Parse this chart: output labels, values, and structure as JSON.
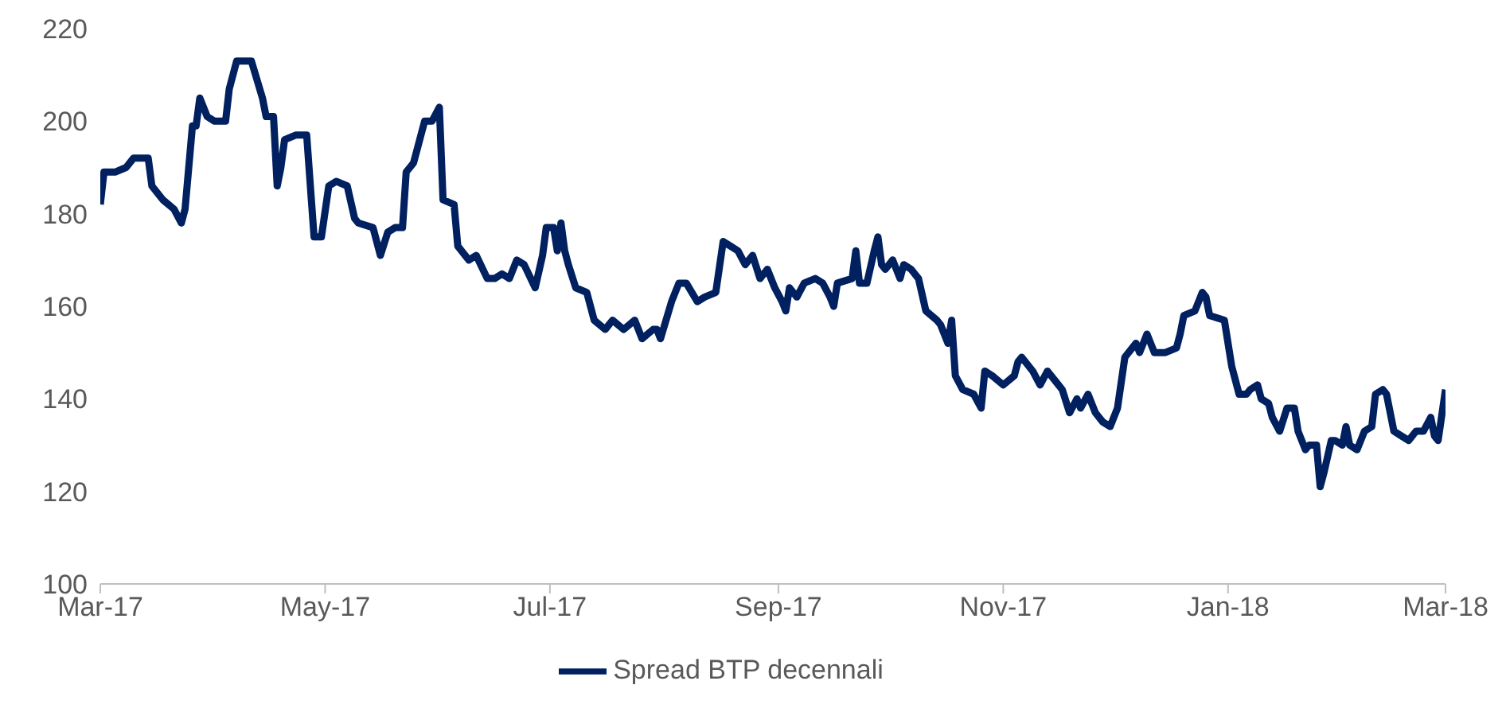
{
  "chart_data": {
    "type": "line",
    "legend": "bottom",
    "grid": false,
    "marker": "none",
    "line_style": "solid",
    "xlim": [
      "2017-03-01",
      "2018-03-01"
    ],
    "xticks": [
      {
        "value": "2017-03-01",
        "label": "Mar-17"
      },
      {
        "value": "2017-05-01",
        "label": "May-17"
      },
      {
        "value": "2017-07-01",
        "label": "Jul-17"
      },
      {
        "value": "2017-09-01",
        "label": "Sep-17"
      },
      {
        "value": "2017-11-01",
        "label": "Nov-17"
      },
      {
        "value": "2018-01-01",
        "label": "Jan-18"
      },
      {
        "value": "2018-03-01",
        "label": "Mar-18"
      }
    ],
    "ylim": [
      100,
      220
    ],
    "yticks": [
      100,
      120,
      140,
      160,
      180,
      200,
      220
    ],
    "x": [
      "2017-03-01",
      "2017-03-02",
      "2017-03-05",
      "2017-03-08",
      "2017-03-10",
      "2017-03-14",
      "2017-03-15",
      "2017-03-18",
      "2017-03-21",
      "2017-03-23",
      "2017-03-24",
      "2017-03-26",
      "2017-03-27",
      "2017-03-28",
      "2017-03-30",
      "2017-04-01",
      "2017-04-04",
      "2017-04-05",
      "2017-04-07",
      "2017-04-11",
      "2017-04-14",
      "2017-04-15",
      "2017-04-17",
      "2017-04-18",
      "2017-04-19",
      "2017-04-20",
      "2017-04-23",
      "2017-04-26",
      "2017-04-28",
      "2017-04-30",
      "2017-05-02",
      "2017-05-04",
      "2017-05-07",
      "2017-05-09",
      "2017-05-10",
      "2017-05-14",
      "2017-05-16",
      "2017-05-18",
      "2017-05-20",
      "2017-05-22",
      "2017-05-23",
      "2017-05-25",
      "2017-05-28",
      "2017-05-30",
      "2017-06-01",
      "2017-06-02",
      "2017-06-05",
      "2017-06-06",
      "2017-06-09",
      "2017-06-11",
      "2017-06-14",
      "2017-06-16",
      "2017-06-18",
      "2017-06-20",
      "2017-06-22",
      "2017-06-24",
      "2017-06-27",
      "2017-06-29",
      "2017-06-30",
      "2017-07-02",
      "2017-07-03",
      "2017-07-04",
      "2017-07-05",
      "2017-07-06",
      "2017-07-08",
      "2017-07-11",
      "2017-07-13",
      "2017-07-16",
      "2017-07-18",
      "2017-07-21",
      "2017-07-24",
      "2017-07-26",
      "2017-07-29",
      "2017-07-30",
      "2017-07-31",
      "2017-08-03",
      "2017-08-05",
      "2017-08-07",
      "2017-08-10",
      "2017-08-12",
      "2017-08-15",
      "2017-08-17",
      "2017-08-19",
      "2017-08-21",
      "2017-08-23",
      "2017-08-25",
      "2017-08-27",
      "2017-08-29",
      "2017-08-31",
      "2017-09-02",
      "2017-09-03",
      "2017-09-04",
      "2017-09-06",
      "2017-09-08",
      "2017-09-11",
      "2017-09-13",
      "2017-09-15",
      "2017-09-16",
      "2017-09-17",
      "2017-09-21",
      "2017-09-22",
      "2017-09-23",
      "2017-09-25",
      "2017-09-27",
      "2017-09-28",
      "2017-09-29",
      "2017-09-30",
      "2017-10-02",
      "2017-10-04",
      "2017-10-05",
      "2017-10-07",
      "2017-10-09",
      "2017-10-11",
      "2017-10-14",
      "2017-10-15",
      "2017-10-17",
      "2017-10-18",
      "2017-10-19",
      "2017-10-21",
      "2017-10-24",
      "2017-10-26",
      "2017-10-27",
      "2017-10-29",
      "2017-11-01",
      "2017-11-04",
      "2017-11-05",
      "2017-11-06",
      "2017-11-09",
      "2017-11-11",
      "2017-11-13",
      "2017-11-16",
      "2017-11-17",
      "2017-11-19",
      "2017-11-21",
      "2017-11-22",
      "2017-11-24",
      "2017-11-26",
      "2017-11-28",
      "2017-11-30",
      "2017-12-02",
      "2017-12-04",
      "2017-12-06",
      "2017-12-07",
      "2017-12-08",
      "2017-12-10",
      "2017-12-12",
      "2017-12-15",
      "2017-12-18",
      "2017-12-19",
      "2017-12-20",
      "2017-12-23",
      "2017-12-25",
      "2017-12-26",
      "2017-12-27",
      "2017-12-31",
      "2018-01-02",
      "2018-01-04",
      "2018-01-06",
      "2018-01-07",
      "2018-01-09",
      "2018-01-10",
      "2018-01-12",
      "2018-01-13",
      "2018-01-15",
      "2018-01-17",
      "2018-01-19",
      "2018-01-20",
      "2018-01-22",
      "2018-01-23",
      "2018-01-25",
      "2018-01-26",
      "2018-01-27",
      "2018-01-29",
      "2018-01-30",
      "2018-02-01",
      "2018-02-02",
      "2018-02-03",
      "2018-02-05",
      "2018-02-07",
      "2018-02-09",
      "2018-02-10",
      "2018-02-12",
      "2018-02-13",
      "2018-02-15",
      "2018-02-17",
      "2018-02-19",
      "2018-02-21",
      "2018-02-23",
      "2018-02-25",
      "2018-02-26",
      "2018-02-27",
      "2018-03-01"
    ],
    "series": [
      {
        "name": "Spread BTP decennali",
        "color": "#002060",
        "values": [
          182,
          189,
          189,
          190,
          192,
          192,
          186,
          183,
          181,
          178,
          181,
          199,
          199,
          205,
          201,
          200,
          200,
          207,
          213,
          213,
          205,
          201,
          201,
          186,
          190,
          196,
          197,
          197,
          175,
          175,
          186,
          187,
          186,
          179,
          178,
          177,
          171,
          176,
          177,
          177,
          189,
          191,
          200,
          200,
          203,
          183,
          182,
          173,
          170,
          171,
          166,
          166,
          167,
          166,
          170,
          169,
          164,
          171,
          177,
          177,
          172,
          178,
          172,
          169,
          164,
          163,
          157,
          155,
          157,
          155,
          157,
          153,
          155,
          155,
          153,
          161,
          165,
          165,
          161,
          162,
          163,
          174,
          173,
          172,
          169,
          171,
          166,
          168,
          164,
          161,
          159,
          164,
          162,
          165,
          166,
          165,
          162,
          160,
          165,
          166,
          172,
          165,
          165,
          172,
          175,
          169,
          168,
          170,
          166,
          169,
          168,
          166,
          159,
          157,
          156,
          152,
          157,
          145,
          142,
          141,
          138,
          146,
          145,
          143,
          145,
          148,
          149,
          146,
          143,
          146,
          143,
          142,
          137,
          140,
          138,
          141,
          137,
          135,
          134,
          138,
          149,
          151,
          152,
          150,
          154,
          150,
          150,
          151,
          154,
          158,
          159,
          163,
          162,
          158,
          157,
          147,
          141,
          141,
          142,
          143,
          140,
          139,
          136,
          133,
          138,
          138,
          133,
          129,
          130,
          130,
          121,
          124,
          131,
          131,
          130,
          134,
          130,
          129,
          133,
          134,
          141,
          142,
          141,
          133,
          132,
          131,
          133,
          133,
          136,
          132,
          131,
          142
        ]
      }
    ]
  }
}
